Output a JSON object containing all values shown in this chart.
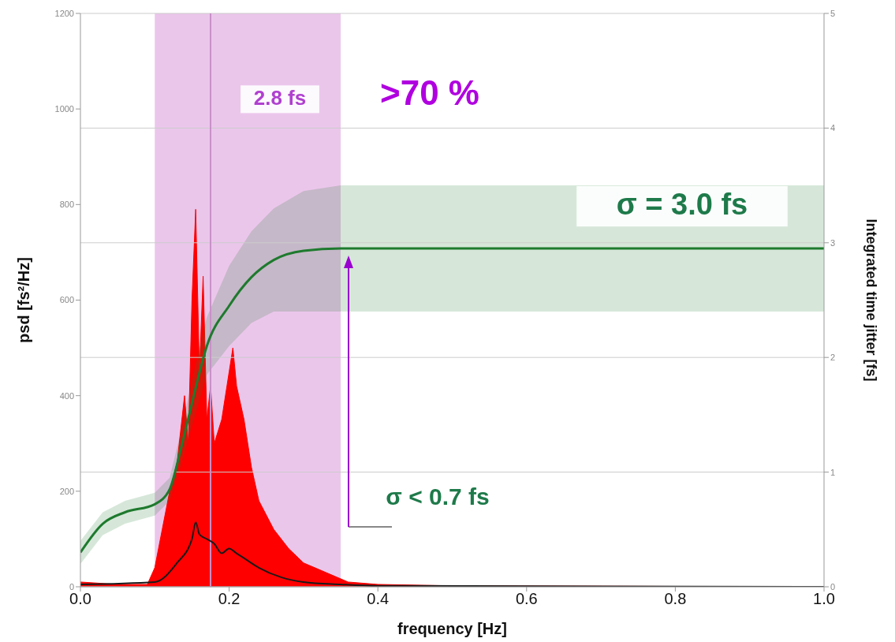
{
  "chart_data": {
    "type": "area",
    "xlabel": "frequency [Hz]",
    "ylabel": "psd [fs²/Hz]",
    "y2label": "Integrated time jitter [fs]",
    "xlim": [
      0,
      1
    ],
    "xticks": [
      {
        "value": 0,
        "label": "0.0"
      },
      0.2,
      0.4,
      0.6,
      0.8,
      {
        "value": 1,
        "label": "1.0"
      }
    ],
    "ylim": [
      0,
      1200
    ],
    "yticks": [
      0,
      200,
      400,
      600,
      800,
      1000,
      1200
    ],
    "y2lim": [
      0,
      5
    ],
    "y2ticks": [
      0,
      1,
      2,
      3,
      4,
      5
    ],
    "grid": true,
    "legend": false,
    "series": [
      {
        "color": "#ff0000",
        "x": [
          0,
          0.05,
          0.09,
          0.1,
          0.11,
          0.12,
          0.13,
          0.14,
          0.145,
          0.15,
          0.155,
          0.16,
          0.165,
          0.17,
          0.175,
          0.18,
          0.19,
          0.2,
          0.205,
          0.21,
          0.22,
          0.23,
          0.24,
          0.26,
          0.28,
          0.3,
          0.33,
          0.36,
          0.4,
          0.5,
          1.0
        ],
        "values": [
          10,
          5,
          5,
          40,
          120,
          200,
          260,
          400,
          300,
          600,
          790,
          450,
          650,
          350,
          420,
          300,
          350,
          450,
          500,
          420,
          350,
          250,
          180,
          120,
          80,
          50,
          30,
          10,
          5,
          2,
          0
        ]
      },
      {
        "type": "line",
        "color": "#1a1a1a",
        "x": [
          0,
          0.1,
          0.13,
          0.15,
          0.155,
          0.16,
          0.17,
          0.18,
          0.19,
          0.2,
          0.21,
          0.22,
          0.24,
          0.27,
          0.3,
          0.35,
          0.4,
          1.0
        ],
        "values": [
          5,
          10,
          50,
          100,
          135,
          110,
          100,
          90,
          70,
          80,
          70,
          60,
          40,
          20,
          10,
          5,
          2,
          0
        ]
      },
      {
        "type": "line",
        "axis": "y2",
        "color": "#1e7a2e",
        "x": [
          0,
          0.03,
          0.06,
          0.1,
          0.12,
          0.135,
          0.15,
          0.17,
          0.2,
          0.23,
          0.26,
          0.3,
          0.35,
          0.5,
          1.0
        ],
        "values": [
          0.3,
          0.55,
          0.65,
          0.72,
          0.85,
          1.2,
          1.6,
          2.1,
          2.45,
          2.7,
          2.85,
          2.93,
          2.95,
          2.95,
          2.95
        ],
        "lower": [
          0.2,
          0.45,
          0.55,
          0.62,
          0.75,
          1.05,
          1.4,
          1.85,
          2.1,
          2.3,
          2.4,
          2.4,
          2.4,
          2.4,
          2.4
        ],
        "upper": [
          0.4,
          0.65,
          0.75,
          0.82,
          0.95,
          1.35,
          1.8,
          2.35,
          2.8,
          3.1,
          3.3,
          3.45,
          3.5,
          3.5,
          3.5
        ]
      }
    ],
    "bands": [
      {
        "axis": "x",
        "from": 0.1,
        "to": 0.35,
        "color": "#e6b8e6"
      }
    ],
    "ref_lines": [
      {
        "axis": "x",
        "value": 0.175,
        "color": "#c890c8"
      }
    ],
    "annotations": [
      "2.8 fs",
      ">70 %",
      "σ = 3.0  fs",
      "σ < 0.7  fs"
    ]
  }
}
